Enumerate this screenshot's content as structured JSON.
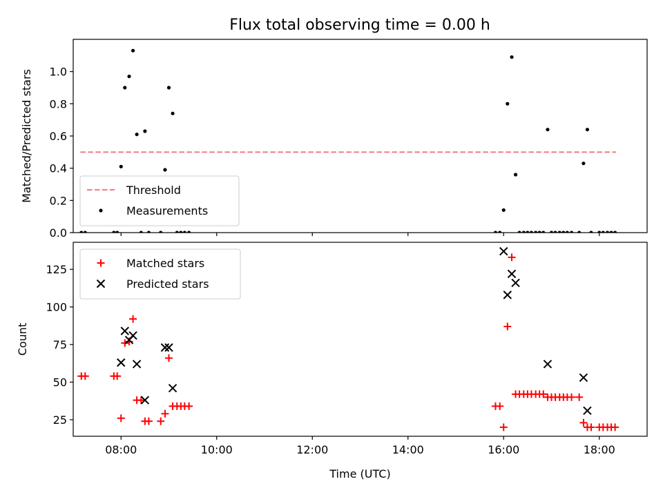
{
  "chart_data": [
    {
      "type": "scatter",
      "title": "Flux total observing time = 0.00 h",
      "ylabel": "Matched/Predicted stars",
      "xlabel": "",
      "xlim": [
        7.0,
        19.0
      ],
      "ylim": [
        0,
        1.2
      ],
      "yticks": [
        0.0,
        0.2,
        0.4,
        0.6,
        0.8,
        1.0
      ],
      "ytick_labels": [
        "0.0",
        "0.2",
        "0.4",
        "0.6",
        "0.8",
        "1.0"
      ],
      "xticks": [
        8,
        10,
        12,
        14,
        16,
        18
      ],
      "xtick_labels": [
        "",
        "",
        "",
        "",
        "",
        ""
      ],
      "grid": false,
      "legend_position": "lower-left",
      "threshold": {
        "name": "Threshold",
        "y": 0.5,
        "x_range": [
          7.15,
          18.35
        ],
        "color": "#f47a7a",
        "style": "dashed"
      },
      "series": [
        {
          "name": "Measurements",
          "marker": "dot",
          "color": "#000000",
          "x": [
            7.17,
            7.25,
            7.85,
            7.92,
            8.0,
            8.08,
            8.17,
            8.25,
            8.33,
            8.42,
            8.5,
            8.58,
            8.83,
            8.92,
            9.0,
            9.08,
            9.17,
            9.25,
            9.33,
            9.42,
            15.83,
            15.92,
            16.0,
            16.08,
            16.17,
            16.25,
            16.33,
            16.42,
            16.5,
            16.58,
            16.67,
            16.75,
            16.83,
            16.92,
            17.0,
            17.08,
            17.17,
            17.25,
            17.33,
            17.42,
            17.58,
            17.67,
            17.75,
            17.83,
            18.0,
            18.08,
            18.17,
            18.25,
            18.33
          ],
          "y": [
            0,
            0,
            0,
            0,
            0.41,
            0.9,
            0.97,
            1.13,
            0.61,
            0,
            0.63,
            0,
            0,
            0.39,
            0.9,
            0.74,
            0,
            0,
            0,
            0,
            0,
            0,
            0.14,
            0.8,
            1.09,
            0.36,
            0,
            0,
            0,
            0,
            0,
            0,
            0,
            0.64,
            0,
            0,
            0,
            0,
            0,
            0,
            0,
            0.43,
            0.64,
            0,
            0,
            0,
            0,
            0,
            0
          ]
        }
      ]
    },
    {
      "type": "scatter",
      "title": "",
      "ylabel": "Count",
      "xlabel": "Time (UTC)",
      "xlim": [
        7.0,
        19.0
      ],
      "ylim": [
        14,
        143
      ],
      "yticks": [
        25,
        50,
        75,
        100,
        125
      ],
      "ytick_labels": [
        "25",
        "50",
        "75",
        "100",
        "125"
      ],
      "xticks": [
        8,
        10,
        12,
        14,
        16,
        18
      ],
      "xtick_labels": [
        "08:00",
        "10:00",
        "12:00",
        "14:00",
        "16:00",
        "18:00"
      ],
      "grid": false,
      "legend_position": "top-left",
      "series": [
        {
          "name": "Matched stars",
          "marker": "plus",
          "color": "#ff0000",
          "x": [
            7.17,
            7.25,
            7.85,
            7.92,
            8.0,
            8.08,
            8.17,
            8.25,
            8.33,
            8.42,
            8.5,
            8.58,
            8.83,
            8.92,
            9.0,
            9.08,
            9.17,
            9.25,
            9.33,
            9.42,
            15.83,
            15.92,
            16.0,
            16.08,
            16.17,
            16.25,
            16.33,
            16.42,
            16.5,
            16.58,
            16.67,
            16.75,
            16.83,
            16.92,
            17.0,
            17.08,
            17.17,
            17.25,
            17.33,
            17.42,
            17.58,
            17.67,
            17.75,
            17.83,
            18.0,
            18.08,
            18.17,
            18.25,
            18.33
          ],
          "y": [
            54,
            54,
            54,
            54,
            26,
            76,
            77,
            92,
            38,
            38,
            24,
            24,
            24,
            29,
            66,
            34,
            34,
            34,
            34,
            34,
            34,
            34,
            20,
            87,
            133,
            42,
            42,
            42,
            42,
            42,
            42,
            42,
            42,
            40,
            40,
            40,
            40,
            40,
            40,
            40,
            40,
            23,
            20,
            20,
            20,
            20,
            20,
            20,
            20
          ]
        },
        {
          "name": "Predicted stars",
          "marker": "x",
          "color": "#000000",
          "x": [
            8.0,
            8.08,
            8.17,
            8.25,
            8.33,
            8.5,
            8.92,
            9.0,
            9.08,
            16.0,
            16.08,
            16.17,
            16.25,
            16.92,
            17.67,
            17.75
          ],
          "y": [
            63,
            84,
            78,
            81,
            62,
            38,
            73,
            73,
            46,
            137,
            108,
            122,
            116,
            62,
            53,
            31
          ]
        }
      ]
    }
  ]
}
